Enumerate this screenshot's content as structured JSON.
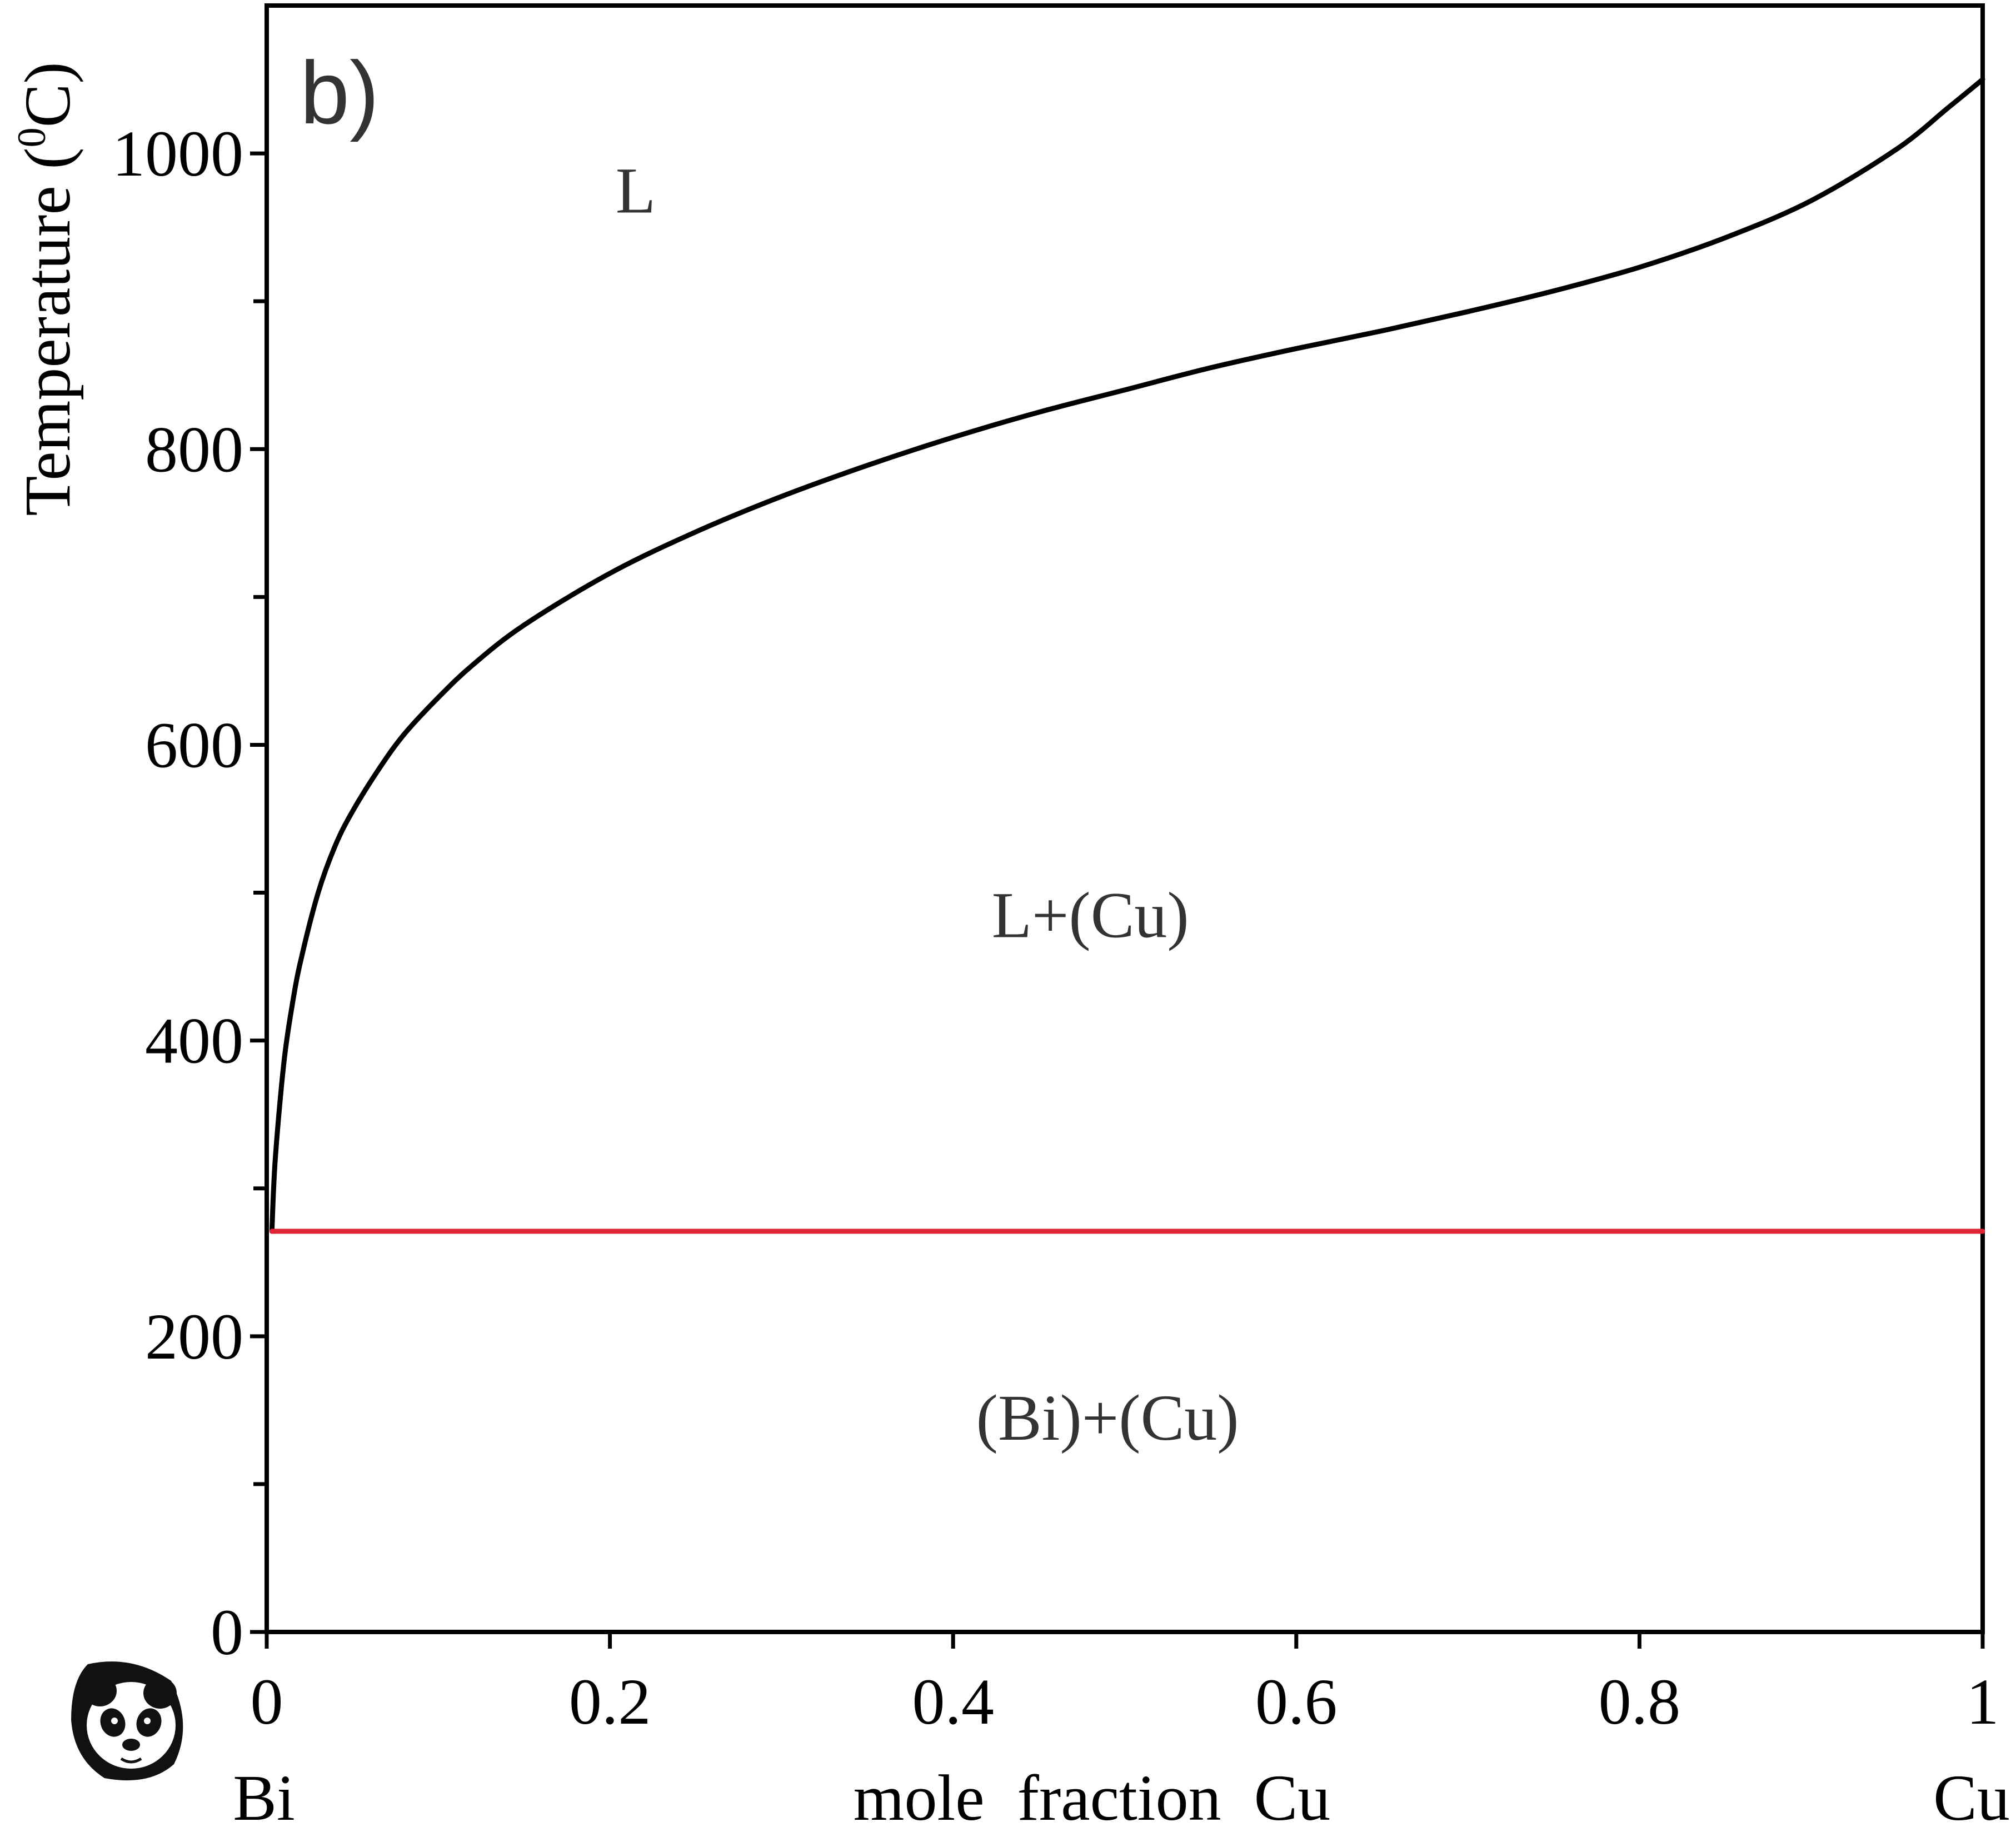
{
  "chart_data": {
    "type": "line",
    "panel_label": "b)",
    "xlabel": "mole  fraction  Cu",
    "ylabel_main": "Temperature (",
    "ylabel_sup": "0",
    "ylabel_end": "C)",
    "x_end_labels": {
      "left": "Bi",
      "right": "Cu"
    },
    "xlim": [
      0,
      1
    ],
    "ylim": [
      0,
      1100
    ],
    "x_ticks": [
      0,
      0.2,
      0.4,
      0.6,
      0.8,
      1
    ],
    "x_tick_labels": [
      "0",
      "0.2",
      "0.4",
      "0.6",
      "0.8",
      "1"
    ],
    "y_ticks": [
      0,
      200,
      400,
      600,
      800,
      1000
    ],
    "y_tick_labels": [
      "0",
      "200",
      "400",
      "600",
      "800",
      "1000"
    ],
    "y_minor_ticks": [
      100,
      300,
      500,
      700,
      900
    ],
    "series": [
      {
        "role": "liquidus",
        "color": "#000000",
        "x": [
          0.003,
          0.005,
          0.01,
          0.015,
          0.02,
          0.03,
          0.04,
          0.05,
          0.065,
          0.08,
          0.1,
          0.12,
          0.15,
          0.2,
          0.25,
          0.3,
          0.35,
          0.4,
          0.45,
          0.5,
          0.55,
          0.6,
          0.65,
          0.7,
          0.75,
          0.8,
          0.85,
          0.9,
          0.95,
          0.98,
          1.0
        ],
        "y": [
          271,
          320,
          385,
          425,
          455,
          500,
          532,
          555,
          583,
          607,
          632,
          654,
          681,
          716,
          744,
          768,
          789,
          808,
          825,
          840,
          855,
          868,
          880,
          893,
          907,
          923,
          943,
          968,
          1003,
          1031,
          1050
        ]
      },
      {
        "role": "eutectic",
        "color": "#e02436",
        "x": [
          0.003,
          1.0
        ],
        "y": [
          271,
          271
        ]
      }
    ],
    "region_labels": [
      {
        "text": "L",
        "x": 0.215,
        "y": 960
      },
      {
        "text": "L+(Cu)",
        "x": 0.48,
        "y": 470
      },
      {
        "text": "(Bi)+(Cu)",
        "x": 0.49,
        "y": 130
      }
    ]
  },
  "logo": {
    "icon": "panda-icon"
  }
}
